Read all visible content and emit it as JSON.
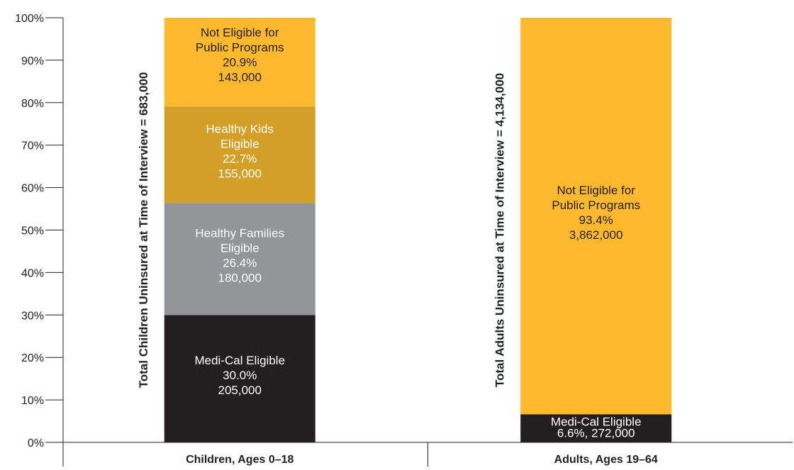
{
  "chart_data": {
    "type": "bar",
    "stacked": true,
    "ylim": [
      0,
      100
    ],
    "yticks": [
      "0%",
      "10%",
      "20%",
      "30%",
      "40%",
      "50%",
      "60%",
      "70%",
      "80%",
      "90%",
      "100%"
    ],
    "categories": [
      "Children, Ages 0–18",
      "Adults, Ages 19–64"
    ],
    "side_labels": [
      "Total Children Uninsured at Time of Interview = 683,000",
      "Total Adults Uninsured at Time of Interview = 4,134,000"
    ],
    "stacks": [
      {
        "category": "Children, Ages 0–18",
        "segments": [
          {
            "value": 30.0,
            "color": "#231f20",
            "text_color": "#ffffff",
            "lines": [
              "Medi-Cal Eligible",
              "30.0%",
              "205,000"
            ]
          },
          {
            "value": 26.4,
            "color": "#939598",
            "text_color": "#ffffff",
            "lines": [
              "Healthy Families",
              "Eligible",
              "26.4%",
              "180,000"
            ]
          },
          {
            "value": 22.7,
            "color": "#d39f27",
            "text_color": "#ffffff",
            "lines": [
              "Healthy Kids",
              "Eligible",
              "22.7%",
              "155,000"
            ]
          },
          {
            "value": 20.9,
            "color": "#fdb92e",
            "text_color": "#231f20",
            "lines": [
              "Not Eligible for",
              "Public Programs",
              "20.9%",
              "143,000"
            ]
          }
        ]
      },
      {
        "category": "Adults, Ages 19–64",
        "segments": [
          {
            "value": 6.6,
            "color": "#231f20",
            "text_color": "#ffffff",
            "lines": [
              "Medi-Cal Eligible",
              "6.6%, 272,000"
            ]
          },
          {
            "value": 93.4,
            "color": "#fdb92e",
            "text_color": "#231f20",
            "lines": [
              "Not Eligible for",
              "Public Programs",
              "93.4%",
              "3,862,000"
            ]
          }
        ]
      }
    ]
  }
}
